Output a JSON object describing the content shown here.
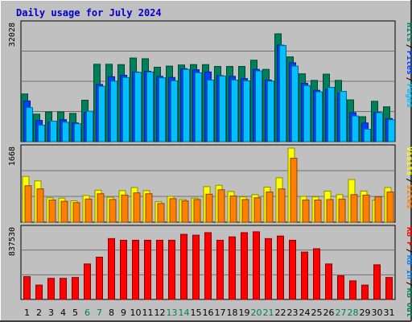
{
  "title": "Daily usage for July 2024",
  "colors": {
    "page_bg": "#c0c0c0",
    "plot_bg": "#c0c0c0",
    "grid": "#707070",
    "title": "#0000cc",
    "weekday": "#000000",
    "weekend": "#00805a",
    "hits": "#00805a",
    "files": "#0040ff",
    "pages": "#00c0ff",
    "visits": "#ffff00",
    "sites": "#ff8000",
    "kb_out": "#00805a",
    "kb_in": "#0080ff",
    "kb_f": "#ff0000"
  },
  "chart_data": [
    {
      "type": "bar",
      "panel": "requests",
      "ymax_label": "32028",
      "ylim": [
        0,
        32028
      ],
      "legend": [
        {
          "label": "Hits",
          "key": "hits"
        },
        {
          "label": "Files",
          "key": "files"
        },
        {
          "label": "Pages",
          "key": "pages"
        }
      ],
      "series": [
        {
          "name": "Hits",
          "key": "hits",
          "values": [
            13000,
            7500,
            8100,
            8100,
            7700,
            11300,
            21100,
            21100,
            21000,
            22800,
            22600,
            20300,
            20600,
            20900,
            21000,
            21000,
            20500,
            20500,
            20500,
            22200,
            19700,
            29400,
            23100,
            18500,
            16700,
            18400,
            16700,
            11400,
            6800,
            11000,
            9500
          ]
        },
        {
          "name": "Files",
          "key": "files",
          "values": [
            11100,
            5800,
            5300,
            6000,
            5100,
            8000,
            15600,
            17700,
            18100,
            19000,
            19200,
            17800,
            17500,
            19900,
            19600,
            19000,
            18000,
            17800,
            17200,
            19700,
            16800,
            26300,
            21500,
            15900,
            14000,
            14200,
            13200,
            7900,
            5100,
            8000,
            6300
          ]
        },
        {
          "name": "Pages",
          "key": "pages",
          "values": [
            9300,
            4500,
            5600,
            5300,
            4900,
            8300,
            15100,
            16500,
            17500,
            18900,
            19000,
            17400,
            16600,
            19700,
            18800,
            16800,
            17900,
            16800,
            16600,
            19300,
            16500,
            26200,
            20600,
            15300,
            13600,
            14800,
            13700,
            7000,
            3400,
            7900,
            6000
          ]
        }
      ]
    },
    {
      "type": "bar",
      "panel": "visitors",
      "ymax_label": "1668",
      "ylim": [
        0,
        1668
      ],
      "legend": [
        {
          "label": "Visits",
          "key": "visits"
        },
        {
          "label": "Sites",
          "key": "sites"
        }
      ],
      "series": [
        {
          "name": "Visits",
          "key": "visits",
          "values": [
            1030,
            930,
            550,
            540,
            480,
            600,
            720,
            560,
            710,
            780,
            710,
            460,
            580,
            510,
            540,
            800,
            830,
            690,
            570,
            620,
            790,
            1000,
            1668,
            580,
            570,
            700,
            620,
            960,
            700,
            500,
            780
          ]
        },
        {
          "name": "Sites",
          "key": "sites",
          "values": [
            820,
            750,
            500,
            470,
            440,
            520,
            640,
            510,
            610,
            660,
            640,
            420,
            530,
            480,
            510,
            630,
            730,
            590,
            510,
            550,
            680,
            750,
            1440,
            500,
            500,
            510,
            520,
            620,
            610,
            570,
            680
          ]
        }
      ]
    },
    {
      "type": "bar",
      "panel": "kbytes",
      "ymax_label": "837530",
      "ylim": [
        0,
        837530
      ],
      "legend": [
        {
          "label": "KB F",
          "key": "kb_f"
        },
        {
          "label": "KB In",
          "key": "kb_in"
        },
        {
          "label": "KB Out",
          "key": "kb_out"
        }
      ],
      "series": [
        {
          "name": "KB F",
          "key": "kb_f",
          "values": [
            270000,
            170000,
            250000,
            250000,
            260000,
            420000,
            500000,
            720000,
            700000,
            700000,
            700000,
            700000,
            700000,
            770000,
            760000,
            790000,
            700000,
            740000,
            790000,
            800000,
            720000,
            750000,
            700000,
            560000,
            600000,
            420000,
            280000,
            220000,
            170000,
            410000,
            260000
          ]
        },
        {
          "name": "KB In",
          "key": "kb_in",
          "values": []
        },
        {
          "name": "KB Out",
          "key": "kb_out",
          "values": []
        }
      ]
    }
  ],
  "x_axis": {
    "days": [
      "1",
      "2",
      "3",
      "4",
      "5",
      "6",
      "7",
      "8",
      "9",
      "10",
      "11",
      "12",
      "13",
      "14",
      "15",
      "16",
      "17",
      "18",
      "19",
      "20",
      "21",
      "22",
      "23",
      "24",
      "25",
      "26",
      "27",
      "28",
      "29",
      "30",
      "31"
    ],
    "weekend": [
      false,
      false,
      false,
      false,
      false,
      true,
      true,
      false,
      false,
      false,
      false,
      false,
      true,
      true,
      false,
      false,
      false,
      false,
      false,
      true,
      true,
      false,
      false,
      false,
      false,
      false,
      true,
      true,
      false,
      false,
      false
    ]
  }
}
